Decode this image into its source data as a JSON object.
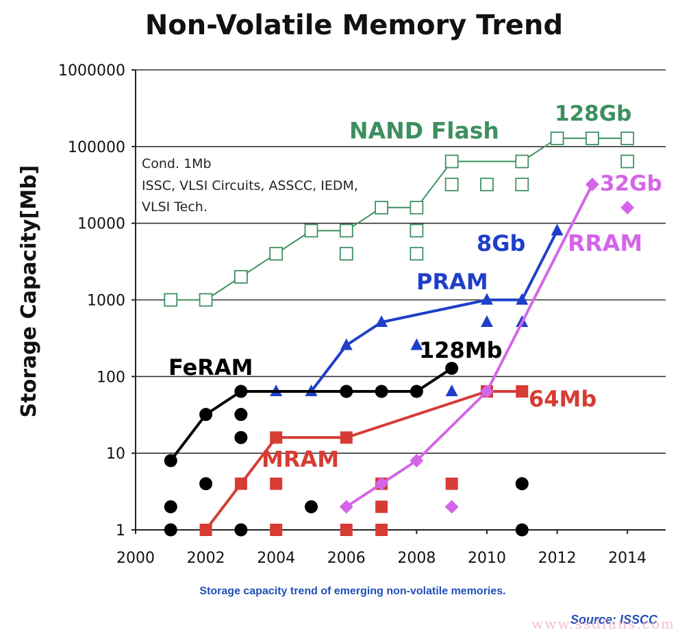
{
  "title": "Non-Volatile Memory Trend",
  "chart_data": {
    "type": "scatter",
    "title": "Non-Volatile Memory Trend",
    "xlabel": "",
    "ylabel": "Storage Capacity[Mb]",
    "y_scale": "log",
    "xlim": [
      2000,
      2015
    ],
    "ylim": [
      1,
      1000000
    ],
    "x_ticks": [
      "2000",
      "2002",
      "2004",
      "2006",
      "2008",
      "2010",
      "2012",
      "2014"
    ],
    "y_ticks": [
      "1",
      "10",
      "100",
      "1000",
      "10000",
      "100000",
      "1000000"
    ],
    "grid": "horizontal",
    "annotation": [
      "Cond. 1Mb",
      "ISSC, VLSI Circuits, ASSCC, IEDM,",
      "VLSI Tech."
    ],
    "series": [
      {
        "name": "NAND Flash",
        "color": "#3d8f5f",
        "marker": "open-square",
        "trend": [
          [
            2001,
            1000
          ],
          [
            2002,
            1000
          ],
          [
            2003,
            2000
          ],
          [
            2004,
            4000
          ],
          [
            2005,
            8000
          ],
          [
            2006,
            8000
          ],
          [
            2007,
            16000
          ],
          [
            2008,
            16000
          ],
          [
            2009,
            64000
          ],
          [
            2011,
            64000
          ],
          [
            2012,
            128000
          ],
          [
            2014,
            128000
          ]
        ],
        "points": [
          [
            2001,
            1000
          ],
          [
            2002,
            1000
          ],
          [
            2003,
            2000
          ],
          [
            2004,
            4000
          ],
          [
            2005,
            8000
          ],
          [
            2006,
            8000
          ],
          [
            2006,
            4000
          ],
          [
            2007,
            16000
          ],
          [
            2008,
            16000
          ],
          [
            2008,
            8000
          ],
          [
            2008,
            4000
          ],
          [
            2009,
            64000
          ],
          [
            2009,
            32000
          ],
          [
            2010,
            32000
          ],
          [
            2011,
            64000
          ],
          [
            2011,
            32000
          ],
          [
            2012,
            128000
          ],
          [
            2013,
            128000
          ],
          [
            2014,
            128000
          ],
          [
            2014,
            64000
          ]
        ],
        "end_label": "128Gb"
      },
      {
        "name": "PRAM",
        "color": "#1f3fc8",
        "marker": "triangle",
        "trend": [
          [
            2005,
            64
          ],
          [
            2006,
            256
          ],
          [
            2007,
            512
          ],
          [
            2010,
            1000
          ],
          [
            2011,
            1000
          ],
          [
            2012,
            8000
          ]
        ],
        "points": [
          [
            2004,
            64
          ],
          [
            2005,
            64
          ],
          [
            2006,
            256
          ],
          [
            2007,
            512
          ],
          [
            2008,
            256
          ],
          [
            2009,
            64
          ],
          [
            2010,
            1000
          ],
          [
            2010,
            512
          ],
          [
            2011,
            1000
          ],
          [
            2011,
            512
          ],
          [
            2012,
            8000
          ]
        ],
        "end_label": "8Gb"
      },
      {
        "name": "FeRAM",
        "color": "#000000",
        "marker": "circle",
        "trend": [
          [
            2001,
            8
          ],
          [
            2002,
            32
          ],
          [
            2003,
            64
          ],
          [
            2008,
            64
          ],
          [
            2009,
            128
          ]
        ],
        "points": [
          [
            2001,
            8
          ],
          [
            2001,
            2
          ],
          [
            2001,
            1
          ],
          [
            2002,
            32
          ],
          [
            2002,
            4
          ],
          [
            2003,
            64
          ],
          [
            2003,
            32
          ],
          [
            2003,
            16
          ],
          [
            2003,
            1
          ],
          [
            2005,
            2
          ],
          [
            2006,
            64
          ],
          [
            2007,
            64
          ],
          [
            2008,
            64
          ],
          [
            2009,
            128
          ],
          [
            2011,
            4
          ],
          [
            2011,
            1
          ]
        ],
        "end_label": "128Mb"
      },
      {
        "name": "MRAM",
        "color": "#d63c34",
        "marker": "square",
        "trend": [
          [
            2002,
            1
          ],
          [
            2003,
            4
          ],
          [
            2004,
            16
          ],
          [
            2006,
            16
          ],
          [
            2010,
            64
          ],
          [
            2011,
            64
          ]
        ],
        "points": [
          [
            2002,
            1
          ],
          [
            2003,
            4
          ],
          [
            2004,
            16
          ],
          [
            2004,
            4
          ],
          [
            2004,
            1
          ],
          [
            2006,
            16
          ],
          [
            2006,
            1
          ],
          [
            2007,
            4
          ],
          [
            2007,
            2
          ],
          [
            2007,
            1
          ],
          [
            2009,
            4
          ],
          [
            2010,
            64
          ],
          [
            2011,
            64
          ]
        ],
        "end_label": "64Mb"
      },
      {
        "name": "RRAM",
        "color": "#d465e8",
        "marker": "diamond",
        "trend": [
          [
            2006,
            2
          ],
          [
            2007,
            4
          ],
          [
            2008,
            8
          ],
          [
            2010,
            64
          ],
          [
            2013,
            32000
          ]
        ],
        "points": [
          [
            2006,
            2
          ],
          [
            2007,
            4
          ],
          [
            2008,
            8
          ],
          [
            2009,
            2
          ],
          [
            2010,
            64
          ],
          [
            2013,
            32000
          ],
          [
            2014,
            16000
          ]
        ],
        "end_label": "32Gb"
      }
    ]
  },
  "caption": "Storage capacity trend of emerging non-volatile memories.",
  "source": "Source: ISSCC",
  "watermark": "www.ssdfans.com"
}
